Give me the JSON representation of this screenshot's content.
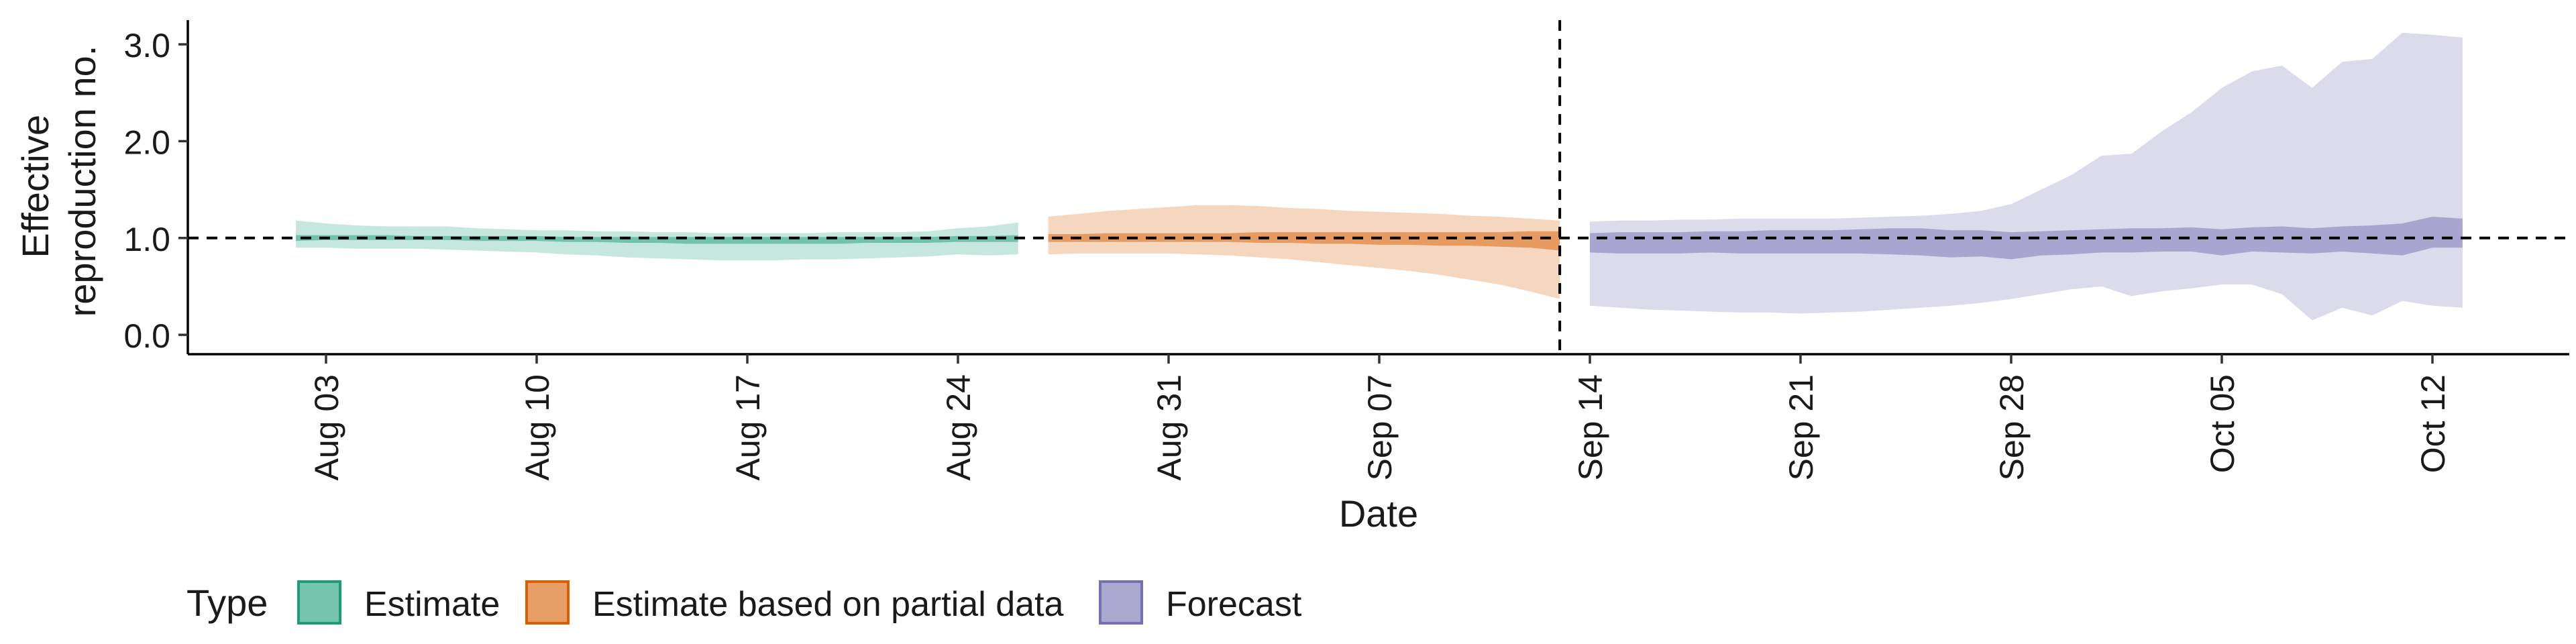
{
  "chart_data": {
    "type": "area",
    "xlabel": "Date",
    "ylabel_lines": [
      "Effective",
      "reproduction no."
    ],
    "ylim": [
      -0.2,
      3.25
    ],
    "y_ticks": [
      0.0,
      1.0,
      2.0,
      3.0
    ],
    "y_tick_labels": [
      "0.0",
      "1.0",
      "2.0",
      "3.0"
    ],
    "x_ticks": [
      "2020-08-03",
      "2020-08-10",
      "2020-08-17",
      "2020-08-24",
      "2020-08-31",
      "2020-09-07",
      "2020-09-14",
      "2020-09-21",
      "2020-09-28",
      "2020-10-05",
      "2020-10-12"
    ],
    "x_tick_labels": [
      "Aug 03",
      "Aug 10",
      "Aug 17",
      "Aug 24",
      "Aug 31",
      "Sep 07",
      "Sep 14",
      "Sep 21",
      "Sep 28",
      "Oct 05",
      "Oct 12"
    ],
    "reference_line_y": 1.0,
    "forecast_start_date": "2020-09-13",
    "legend": {
      "title": "Type",
      "position": "bottom-left",
      "entries": [
        {
          "label": "Estimate",
          "color": "#1b9e77"
        },
        {
          "label": "Estimate based on partial data",
          "color": "#d95f02"
        },
        {
          "label": "Forecast",
          "color": "#7570b3"
        }
      ]
    },
    "series": [
      {
        "name": "Estimate",
        "color": "#1b9e77",
        "dates": [
          "2020-08-02",
          "2020-08-03",
          "2020-08-04",
          "2020-08-05",
          "2020-08-06",
          "2020-08-07",
          "2020-08-08",
          "2020-08-09",
          "2020-08-10",
          "2020-08-11",
          "2020-08-12",
          "2020-08-13",
          "2020-08-14",
          "2020-08-15",
          "2020-08-16",
          "2020-08-17",
          "2020-08-18",
          "2020-08-19",
          "2020-08-20",
          "2020-08-21",
          "2020-08-22",
          "2020-08-23",
          "2020-08-24",
          "2020-08-25",
          "2020-08-26"
        ],
        "outer_low": [
          0.9,
          0.9,
          0.89,
          0.89,
          0.89,
          0.88,
          0.87,
          0.86,
          0.85,
          0.83,
          0.82,
          0.8,
          0.79,
          0.78,
          0.77,
          0.77,
          0.77,
          0.78,
          0.78,
          0.79,
          0.8,
          0.81,
          0.83,
          0.82,
          0.83
        ],
        "outer_high": [
          1.18,
          1.15,
          1.13,
          1.12,
          1.12,
          1.12,
          1.1,
          1.09,
          1.08,
          1.08,
          1.07,
          1.07,
          1.06,
          1.06,
          1.05,
          1.05,
          1.05,
          1.05,
          1.06,
          1.06,
          1.06,
          1.07,
          1.1,
          1.12,
          1.16
        ],
        "inner_low": [
          0.97,
          0.98,
          0.98,
          0.98,
          0.98,
          0.98,
          0.97,
          0.97,
          0.97,
          0.96,
          0.96,
          0.95,
          0.95,
          0.94,
          0.94,
          0.94,
          0.94,
          0.94,
          0.94,
          0.95,
          0.95,
          0.95,
          0.96,
          0.96,
          0.96
        ],
        "inner_high": [
          1.03,
          1.03,
          1.03,
          1.03,
          1.02,
          1.02,
          1.02,
          1.02,
          1.02,
          1.01,
          1.01,
          1.01,
          1.01,
          1.01,
          1.01,
          1.01,
          1.01,
          1.01,
          1.01,
          1.01,
          1.01,
          1.01,
          1.02,
          1.02,
          1.03
        ]
      },
      {
        "name": "Estimate based on partial data",
        "color": "#d95f02",
        "dates": [
          "2020-08-27",
          "2020-08-28",
          "2020-08-29",
          "2020-08-30",
          "2020-08-31",
          "2020-09-01",
          "2020-09-02",
          "2020-09-03",
          "2020-09-04",
          "2020-09-05",
          "2020-09-06",
          "2020-09-07",
          "2020-09-08",
          "2020-09-09",
          "2020-09-10",
          "2020-09-11",
          "2020-09-12",
          "2020-09-13"
        ],
        "outer_low": [
          0.83,
          0.84,
          0.84,
          0.84,
          0.84,
          0.83,
          0.82,
          0.8,
          0.78,
          0.75,
          0.72,
          0.69,
          0.66,
          0.62,
          0.57,
          0.52,
          0.45,
          0.37
        ],
        "outer_high": [
          1.22,
          1.25,
          1.28,
          1.3,
          1.32,
          1.34,
          1.34,
          1.33,
          1.31,
          1.3,
          1.28,
          1.27,
          1.26,
          1.25,
          1.23,
          1.22,
          1.2,
          1.18
        ],
        "inner_low": [
          0.96,
          0.96,
          0.96,
          0.96,
          0.96,
          0.96,
          0.96,
          0.95,
          0.95,
          0.94,
          0.94,
          0.93,
          0.93,
          0.92,
          0.92,
          0.91,
          0.9,
          0.87
        ],
        "inner_high": [
          1.04,
          1.04,
          1.05,
          1.05,
          1.05,
          1.05,
          1.05,
          1.06,
          1.06,
          1.06,
          1.06,
          1.06,
          1.06,
          1.06,
          1.06,
          1.06,
          1.07,
          1.07
        ]
      },
      {
        "name": "Forecast",
        "color": "#7570b3",
        "dates": [
          "2020-09-14",
          "2020-09-15",
          "2020-09-16",
          "2020-09-17",
          "2020-09-18",
          "2020-09-19",
          "2020-09-20",
          "2020-09-21",
          "2020-09-22",
          "2020-09-23",
          "2020-09-24",
          "2020-09-25",
          "2020-09-26",
          "2020-09-27",
          "2020-09-28",
          "2020-09-29",
          "2020-09-30",
          "2020-10-01",
          "2020-10-02",
          "2020-10-03",
          "2020-10-04",
          "2020-10-05",
          "2020-10-06",
          "2020-10-07",
          "2020-10-08",
          "2020-10-09",
          "2020-10-10",
          "2020-10-11",
          "2020-10-12",
          "2020-10-13"
        ],
        "outer_low": [
          0.3,
          0.28,
          0.26,
          0.25,
          0.24,
          0.23,
          0.23,
          0.22,
          0.23,
          0.24,
          0.26,
          0.28,
          0.3,
          0.33,
          0.37,
          0.42,
          0.47,
          0.5,
          0.4,
          0.45,
          0.48,
          0.52,
          0.52,
          0.42,
          0.15,
          0.28,
          0.2,
          0.35,
          0.3,
          0.28
        ],
        "outer_high": [
          1.17,
          1.18,
          1.18,
          1.19,
          1.19,
          1.2,
          1.2,
          1.2,
          1.2,
          1.21,
          1.22,
          1.23,
          1.25,
          1.28,
          1.35,
          1.5,
          1.65,
          1.85,
          1.87,
          2.1,
          2.3,
          2.55,
          2.72,
          2.78,
          2.55,
          2.82,
          2.85,
          3.12,
          3.1,
          3.07
        ],
        "inner_low": [
          0.85,
          0.84,
          0.84,
          0.84,
          0.85,
          0.84,
          0.84,
          0.84,
          0.84,
          0.84,
          0.83,
          0.82,
          0.8,
          0.81,
          0.78,
          0.82,
          0.83,
          0.85,
          0.85,
          0.86,
          0.86,
          0.82,
          0.86,
          0.85,
          0.84,
          0.86,
          0.84,
          0.82,
          0.9,
          0.9
        ],
        "inner_high": [
          1.05,
          1.06,
          1.06,
          1.06,
          1.07,
          1.07,
          1.08,
          1.08,
          1.08,
          1.09,
          1.1,
          1.1,
          1.08,
          1.08,
          1.06,
          1.07,
          1.08,
          1.09,
          1.1,
          1.1,
          1.11,
          1.09,
          1.11,
          1.12,
          1.1,
          1.12,
          1.13,
          1.15,
          1.22,
          1.2
        ]
      }
    ]
  }
}
